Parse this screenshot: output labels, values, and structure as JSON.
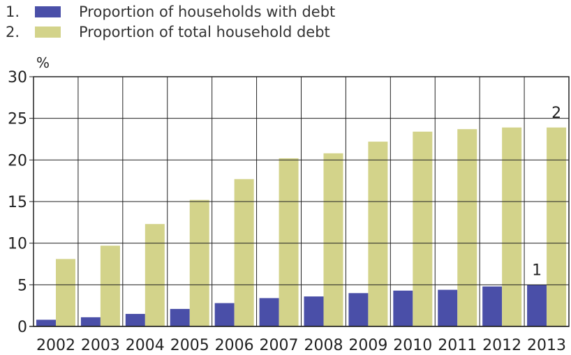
{
  "chart_data": {
    "type": "bar",
    "unit_label": "%",
    "categories": [
      "2002",
      "2003",
      "2004",
      "2005",
      "2006",
      "2007",
      "2008",
      "2009",
      "2010",
      "2011",
      "2012",
      "2013"
    ],
    "series": [
      {
        "number": "1.",
        "marker": "1",
        "name": "Proportion of households with debt",
        "color": "#4a4fa8",
        "values": [
          0.8,
          1.1,
          1.5,
          2.1,
          2.8,
          3.4,
          3.6,
          4.0,
          4.3,
          4.4,
          4.8,
          5.0
        ]
      },
      {
        "number": "2.",
        "marker": "2",
        "name": "Proportion of total household debt",
        "color": "#d3d38a",
        "values": [
          8.1,
          9.7,
          12.3,
          15.2,
          17.7,
          20.2,
          20.8,
          22.2,
          23.4,
          23.7,
          23.9,
          23.9
        ]
      }
    ],
    "ylim": [
      0,
      30
    ],
    "yticks": [
      0,
      5,
      10,
      15,
      20,
      25,
      30
    ],
    "grid": true,
    "legend_position": "top-left"
  }
}
